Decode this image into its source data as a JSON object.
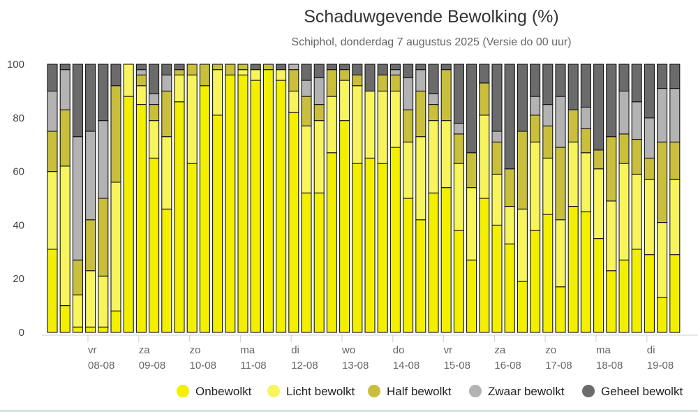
{
  "chart_data": {
    "type": "bar",
    "stacked": true,
    "title": "Schaduwgevende Bewolking (%)",
    "subtitle": "Schiphol, donderdag 7 augustus 2025 (Versie do 00 uur)",
    "ylim": [
      0,
      100
    ],
    "yticks": [
      0,
      20,
      40,
      60,
      80,
      100
    ],
    "grid": false,
    "legend_position": "bottom-right",
    "x_labels": [
      {
        "day": "vr",
        "date": "08-08"
      },
      {
        "day": "za",
        "date": "09-08"
      },
      {
        "day": "zo",
        "date": "10-08"
      },
      {
        "day": "ma",
        "date": "11-08"
      },
      {
        "day": "di",
        "date": "12-08"
      },
      {
        "day": "wo",
        "date": "13-08"
      },
      {
        "day": "do",
        "date": "14-08"
      },
      {
        "day": "vr",
        "date": "15-08"
      },
      {
        "day": "za",
        "date": "16-08"
      },
      {
        "day": "zo",
        "date": "17-08"
      },
      {
        "day": "ma",
        "date": "18-08"
      },
      {
        "day": "di",
        "date": "19-08"
      }
    ],
    "series": [
      {
        "name": "Onbewolkt",
        "color": "#f2ef00",
        "values": [
          31,
          10,
          2,
          2,
          2,
          8,
          88,
          85,
          65,
          46,
          86,
          63,
          92,
          81,
          96,
          96,
          94,
          98,
          94,
          82,
          52,
          52,
          67,
          79,
          63,
          65,
          63,
          69,
          50,
          42,
          52,
          54,
          38,
          27,
          50,
          40,
          33,
          19,
          38,
          44,
          17,
          47,
          45,
          35,
          23,
          27,
          31,
          29,
          13,
          29
        ]
      },
      {
        "name": "Licht bewolkt",
        "color": "#f7f45e",
        "values": [
          29,
          52,
          12,
          21,
          19,
          48,
          12,
          7,
          14,
          27,
          10,
          33,
          0,
          17,
          0,
          2,
          4,
          0,
          4,
          8,
          25,
          27,
          21,
          15,
          29,
          25,
          27,
          21,
          21,
          31,
          27,
          25,
          25,
          27,
          31,
          19,
          14,
          27,
          33,
          21,
          25,
          24,
          22,
          26,
          26,
          36,
          28,
          28,
          28,
          28
        ]
      },
      {
        "name": "Half bewolkt",
        "color": "#c9bf3c",
        "values": [
          15,
          21,
          13,
          19,
          29,
          36,
          0,
          4,
          6,
          17,
          2,
          4,
          8,
          2,
          4,
          2,
          0,
          2,
          0,
          8,
          11,
          6,
          10,
          4,
          4,
          0,
          6,
          6,
          12,
          17,
          6,
          19,
          11,
          13,
          12,
          12,
          14,
          29,
          10,
          12,
          27,
          12,
          9,
          7,
          24,
          11,
          13,
          8,
          30,
          14
        ]
      },
      {
        "name": "Zwaar bewolkt",
        "color": "#b3b3b3",
        "values": [
          15,
          15,
          46,
          33,
          29,
          0,
          0,
          2,
          4,
          6,
          0,
          0,
          0,
          0,
          0,
          0,
          0,
          0,
          0,
          2,
          6,
          10,
          0,
          0,
          0,
          0,
          0,
          2,
          12,
          8,
          4,
          0,
          4,
          0,
          0,
          4,
          0,
          0,
          7,
          8,
          19,
          0,
          8,
          0,
          0,
          16,
          14,
          15,
          20,
          20
        ]
      },
      {
        "name": "Geheel bewolkt",
        "color": "#6b6b6b",
        "values": [
          10,
          2,
          27,
          25,
          21,
          8,
          0,
          2,
          11,
          4,
          2,
          0,
          0,
          0,
          0,
          0,
          2,
          0,
          2,
          0,
          6,
          5,
          2,
          2,
          4,
          10,
          4,
          2,
          5,
          2,
          11,
          2,
          22,
          33,
          7,
          25,
          39,
          25,
          12,
          15,
          12,
          17,
          16,
          32,
          27,
          10,
          14,
          20,
          9,
          9
        ]
      }
    ]
  }
}
